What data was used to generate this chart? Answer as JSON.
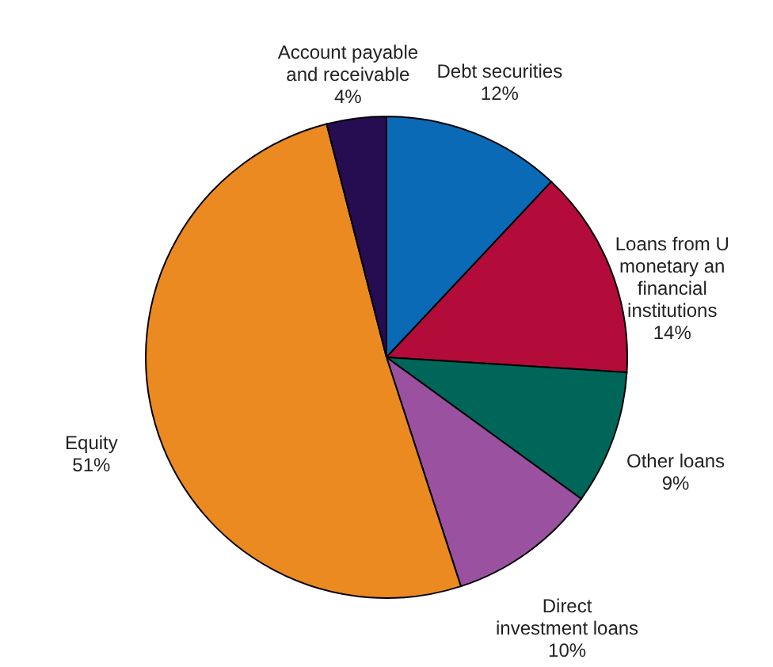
{
  "chart_data": {
    "type": "pie",
    "categories": [
      "Debt securities",
      "Loans from U monetary an financial institutions",
      "Other loans",
      "Direct investment loans",
      "Equity",
      "Account payable and receivable"
    ],
    "values": [
      12,
      14,
      9,
      10,
      51,
      4
    ],
    "value_labels": [
      "12%",
      "14%",
      "9%",
      "10%",
      "51%",
      "4%"
    ],
    "colors": [
      "#0a6ab5",
      "#b30c3a",
      "#00665a",
      "#9a52a0",
      "#ec8a22",
      "#260d52"
    ]
  }
}
